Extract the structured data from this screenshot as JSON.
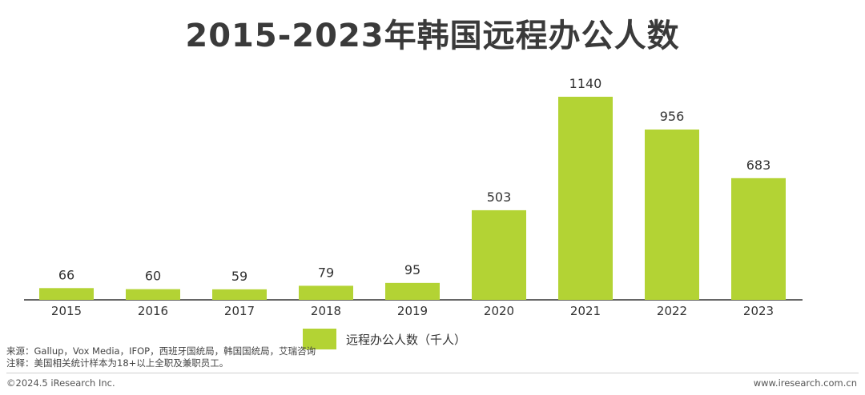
{
  "title": "2015-2023年韩国远程办公人数",
  "chart_data": {
    "type": "bar",
    "categories": [
      "2015",
      "2016",
      "2017",
      "2018",
      "2019",
      "2020",
      "2021",
      "2022",
      "2023"
    ],
    "series": [
      {
        "name": "远程办公人数（千人）",
        "values": [
          66,
          60,
          59,
          79,
          95,
          503,
          1140,
          956,
          683
        ],
        "color": "#b3d334"
      }
    ],
    "title": "2015-2023年韩国远程办公人数",
    "xlabel": "",
    "ylabel": "",
    "ylim": [
      0,
      1140
    ],
    "grid": false,
    "legend": "bottom-center",
    "data_labels": true
  },
  "notes": {
    "source": "来源：Gallup，Vox Media，IFOP，西班牙国统局，韩国国统局，艾瑞咨询",
    "annotation": "注释：美国相关统计样本为18+以上全职及兼职员工。"
  },
  "footer": {
    "copyright": "©2024.5 iResearch Inc.",
    "website": "www.iresearch.com.cn"
  },
  "colors": {
    "bar": "#b3d334",
    "axis": "#333333",
    "text": "#3a3a3a"
  }
}
